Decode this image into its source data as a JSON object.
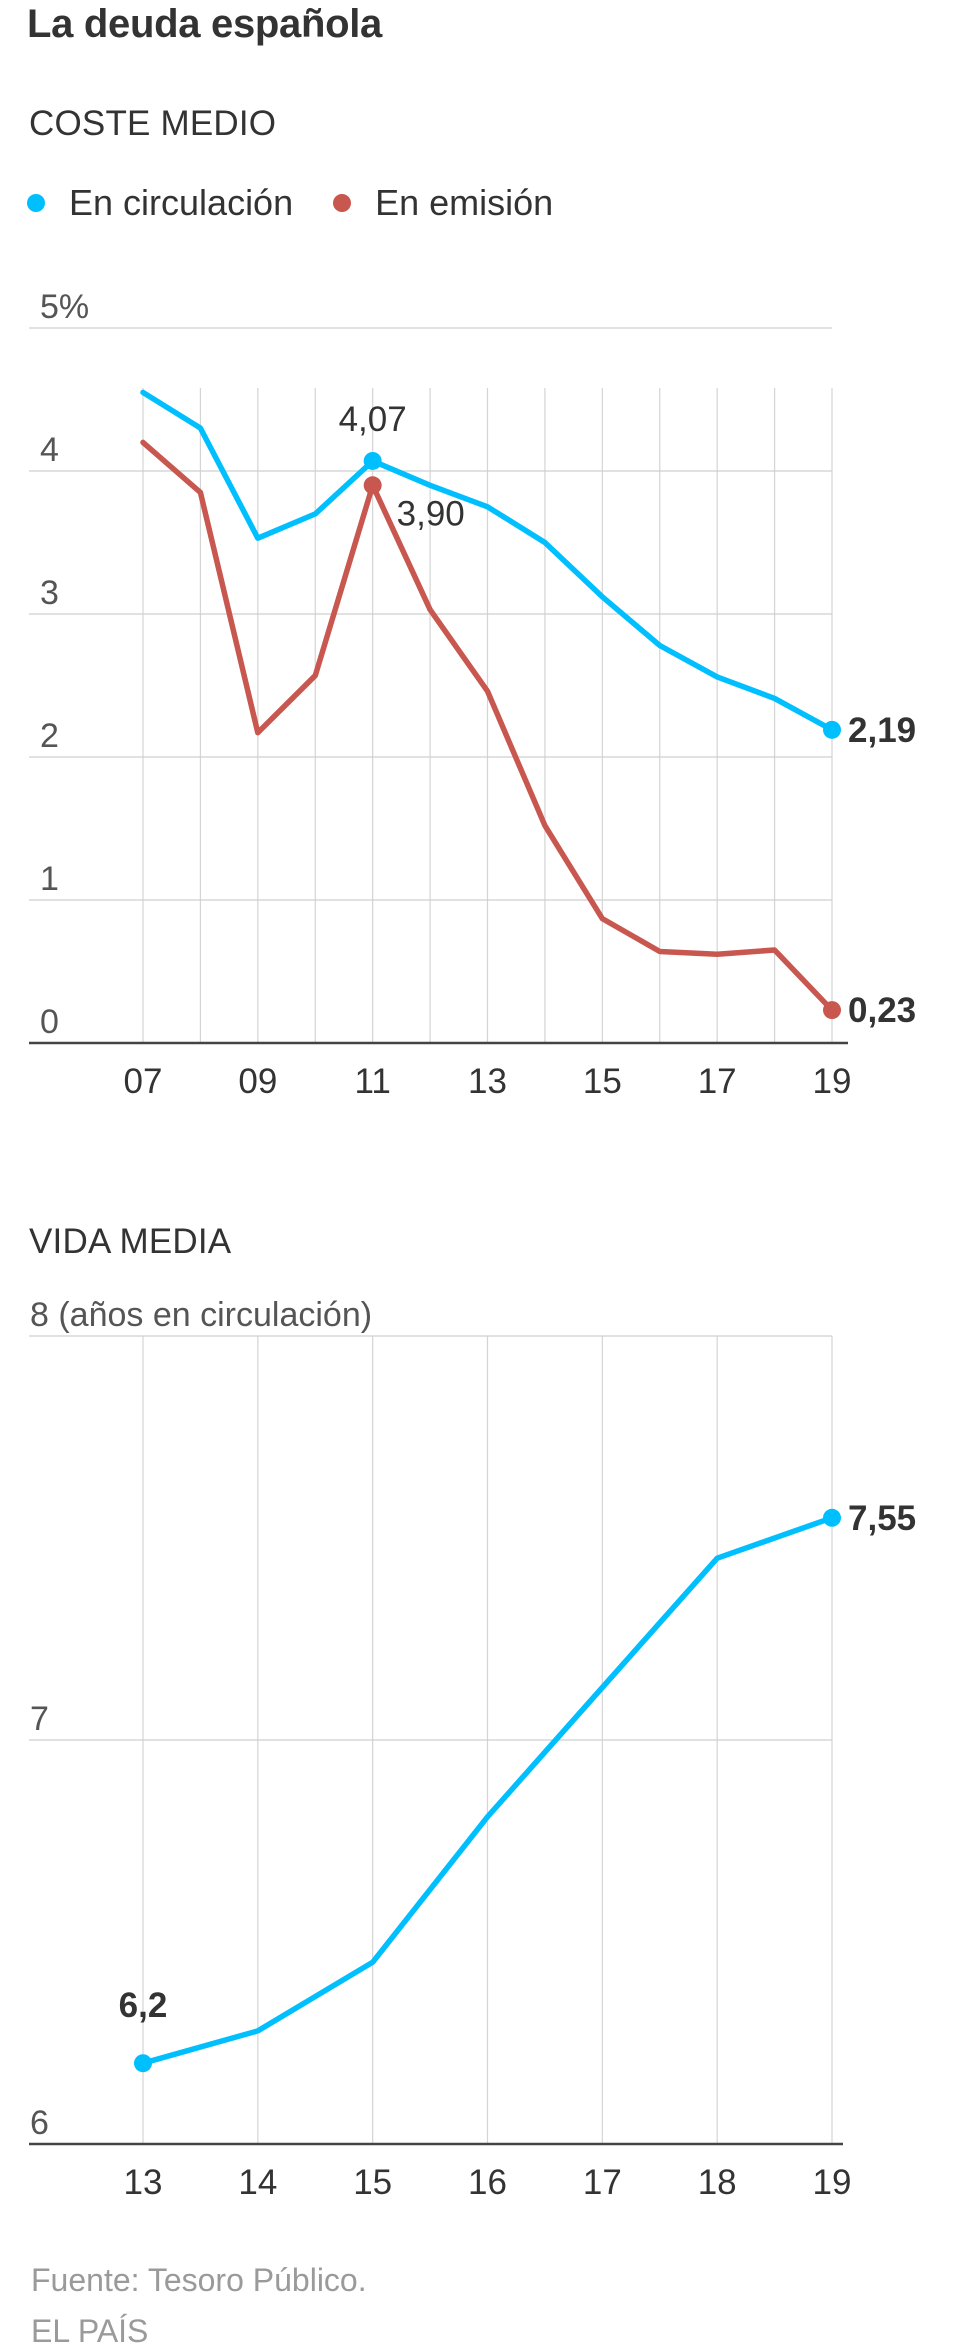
{
  "header": {
    "title": "La deuda española"
  },
  "chart_data": [
    {
      "type": "line",
      "section_title": "COSTE MEDIO",
      "x": [
        "07",
        "08",
        "09",
        "10",
        "11",
        "12",
        "13",
        "14",
        "15",
        "16",
        "17",
        "18",
        "19"
      ],
      "x_tick_labels": [
        "07",
        "09",
        "11",
        "13",
        "15",
        "17",
        "19"
      ],
      "y_tick_labels": [
        "5%",
        "4",
        "3",
        "2",
        "1",
        "0"
      ],
      "ylim": [
        0,
        5
      ],
      "grid": true,
      "legend_position": "top-left",
      "series": [
        {
          "name": "En circulación",
          "color": "#00bfff",
          "values": [
            4.55,
            4.3,
            3.53,
            3.7,
            4.07,
            3.9,
            3.75,
            3.5,
            3.12,
            2.78,
            2.56,
            2.41,
            2.19
          ]
        },
        {
          "name": "En emisión",
          "color": "#c8574f",
          "values": [
            4.2,
            3.85,
            2.17,
            2.57,
            3.9,
            3.03,
            2.46,
            1.52,
            0.87,
            0.64,
            0.62,
            0.65,
            0.23
          ]
        }
      ],
      "annotations": [
        {
          "text": "4,07",
          "x": "11",
          "value": 4.07,
          "series": 0
        },
        {
          "text": "3,90",
          "x": "11",
          "value": 3.9,
          "series": 1
        },
        {
          "text": "2,19",
          "x": "19",
          "value": 2.19,
          "series": 0,
          "bold": true
        },
        {
          "text": "0,23",
          "x": "19",
          "value": 0.23,
          "series": 1,
          "bold": true
        }
      ]
    },
    {
      "type": "line",
      "section_title": "VIDA MEDIA",
      "x": [
        "13",
        "14",
        "15",
        "16",
        "17",
        "18",
        "19"
      ],
      "x_tick_labels": [
        "13",
        "14",
        "15",
        "16",
        "17",
        "18",
        "19"
      ],
      "y_tick_labels": [
        "8 (años en circulación)",
        "7",
        "6"
      ],
      "ylim": [
        6,
        8
      ],
      "grid": true,
      "series": [
        {
          "name": "Vida media",
          "color": "#00bfff",
          "values": [
            6.2,
            6.28,
            6.45,
            6.81,
            7.13,
            7.45,
            7.55
          ]
        }
      ],
      "annotations": [
        {
          "text": "6,2",
          "x": "13",
          "value": 6.2,
          "series": 0,
          "bold": true
        },
        {
          "text": "7,55",
          "x": "19",
          "value": 7.55,
          "series": 0,
          "bold": true
        }
      ]
    }
  ],
  "footer": {
    "source": "Fuente: Tesoro Público.",
    "publisher": "EL PAÍS"
  }
}
